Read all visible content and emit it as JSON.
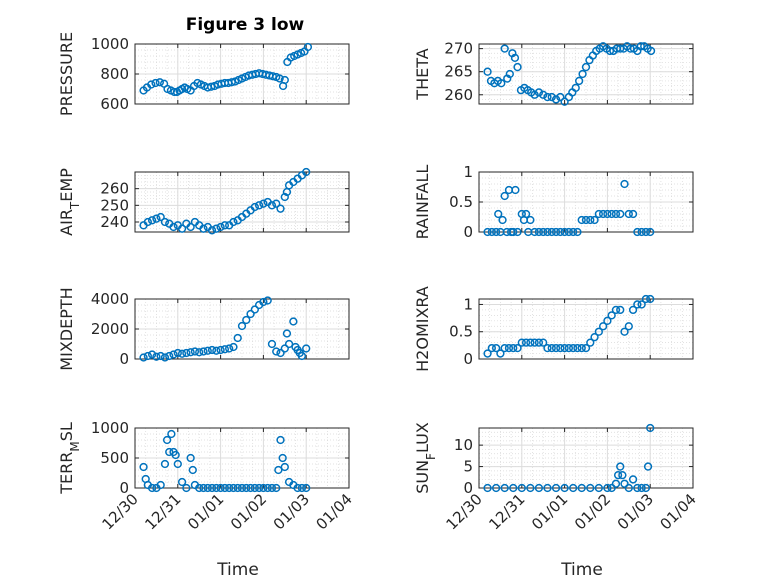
{
  "figure": {
    "title": "Figure 3 low",
    "x_axis_label": "Time",
    "x_tick_labels": [
      "12/30",
      "12/31",
      "01/01",
      "01/02",
      "01/03",
      "01/04"
    ],
    "marker_color": "#0072BD"
  },
  "chart_data": [
    {
      "type": "scatter",
      "name": "PRESSURE",
      "ylabel": "PRESSURE",
      "title": "Figure 3 low",
      "ylim": [
        600,
        1000
      ],
      "yticks": [
        600,
        800,
        1000
      ],
      "grid": true,
      "xlim": [
        0,
        5
      ],
      "x": [
        0.2,
        0.28,
        0.38,
        0.48,
        0.58,
        0.68,
        0.76,
        0.84,
        0.92,
        0.98,
        1.04,
        1.1,
        1.16,
        1.22,
        1.3,
        1.38,
        1.46,
        1.54,
        1.62,
        1.7,
        1.78,
        1.86,
        1.94,
        2.02,
        2.1,
        2.18,
        2.26,
        2.34,
        2.42,
        2.5,
        2.58,
        2.66,
        2.74,
        2.82,
        2.9,
        2.98,
        3.06,
        3.14,
        3.22,
        3.3,
        3.38,
        3.46,
        3.5,
        3.56,
        3.64,
        3.72,
        3.8,
        3.88,
        3.96,
        4.04
      ],
      "y": [
        690,
        710,
        730,
        740,
        745,
        735,
        700,
        690,
        680,
        680,
        690,
        700,
        710,
        700,
        690,
        720,
        740,
        730,
        720,
        710,
        715,
        720,
        730,
        735,
        740,
        740,
        745,
        750,
        760,
        770,
        780,
        790,
        795,
        800,
        805,
        800,
        795,
        790,
        785,
        780,
        770,
        720,
        760,
        880,
        910,
        920,
        930,
        940,
        950,
        980
      ]
    },
    {
      "type": "scatter",
      "name": "THETA",
      "ylabel": "THETA",
      "ylim": [
        258,
        271
      ],
      "yticks": [
        260,
        265,
        270
      ],
      "grid": true,
      "xlim": [
        0,
        5
      ],
      "x": [
        0.2,
        0.28,
        0.36,
        0.44,
        0.52,
        0.6,
        0.66,
        0.72,
        0.78,
        0.84,
        0.9,
        0.98,
        1.06,
        1.14,
        1.22,
        1.3,
        1.4,
        1.5,
        1.6,
        1.7,
        1.8,
        1.9,
        2.0,
        2.1,
        2.18,
        2.26,
        2.34,
        2.42,
        2.5,
        2.58,
        2.66,
        2.74,
        2.82,
        2.9,
        2.98,
        3.06,
        3.14,
        3.22,
        3.3,
        3.38,
        3.46,
        3.54,
        3.62,
        3.7,
        3.78,
        3.86,
        3.94,
        4.02
      ],
      "y": [
        265,
        263,
        262.5,
        263,
        262.5,
        270,
        263.5,
        264.5,
        269,
        268,
        266,
        261,
        261.5,
        261,
        260.5,
        260,
        260.5,
        260,
        259.5,
        259.5,
        259,
        259.5,
        258.5,
        259.5,
        260.5,
        261.5,
        263,
        264.5,
        266,
        267.5,
        268.5,
        269.5,
        270,
        270.5,
        270,
        269.5,
        269.5,
        270,
        270,
        270,
        270.5,
        270,
        270,
        269.5,
        270.5,
        270.5,
        270,
        269.5
      ]
    },
    {
      "type": "scatter",
      "name": "AIR_TEMP",
      "ylabel": "AIR_TEMP",
      "ylim": [
        234,
        270
      ],
      "yticks": [
        240,
        250,
        260
      ],
      "grid": true,
      "xlim": [
        0,
        5
      ],
      "x": [
        0.2,
        0.3,
        0.4,
        0.5,
        0.6,
        0.7,
        0.8,
        0.9,
        1.0,
        1.1,
        1.2,
        1.3,
        1.4,
        1.5,
        1.6,
        1.7,
        1.8,
        1.9,
        2.0,
        2.1,
        2.2,
        2.3,
        2.4,
        2.5,
        2.6,
        2.7,
        2.8,
        2.9,
        3.0,
        3.1,
        3.2,
        3.3,
        3.4,
        3.5,
        3.55,
        3.6,
        3.7,
        3.8,
        3.9,
        4.0
      ],
      "y": [
        238,
        240,
        241,
        242,
        243,
        240,
        239,
        237,
        238,
        236,
        239,
        237,
        240,
        238,
        236,
        237,
        235,
        236,
        237,
        238,
        238,
        240,
        241,
        243,
        245,
        247,
        249,
        250,
        251,
        252,
        250,
        251,
        248,
        255,
        258,
        262,
        264,
        266,
        268,
        270
      ]
    },
    {
      "type": "scatter",
      "name": "RAINFALL",
      "ylabel": "RAINFALL",
      "ylim": [
        0,
        1
      ],
      "yticks": [
        0,
        0.5,
        1
      ],
      "grid": true,
      "xlim": [
        0,
        5
      ],
      "x": [
        0.2,
        0.3,
        0.4,
        0.45,
        0.5,
        0.55,
        0.6,
        0.65,
        0.7,
        0.75,
        0.8,
        0.85,
        0.9,
        1.0,
        1.05,
        1.1,
        1.15,
        1.2,
        1.3,
        1.4,
        1.5,
        1.6,
        1.7,
        1.8,
        1.9,
        2.0,
        2.1,
        2.2,
        2.3,
        2.4,
        2.5,
        2.6,
        2.7,
        2.8,
        2.9,
        3.0,
        3.1,
        3.2,
        3.3,
        3.4,
        3.5,
        3.6,
        3.7,
        3.8,
        3.9,
        4.0
      ],
      "y": [
        0,
        0,
        0,
        0.3,
        0,
        0.2,
        0.6,
        0,
        0.7,
        0,
        0,
        0.7,
        0,
        0.3,
        0.2,
        0.3,
        0,
        0.2,
        0,
        0,
        0,
        0,
        0,
        0,
        0,
        0,
        0,
        0,
        0,
        0.2,
        0.2,
        0.2,
        0.2,
        0.3,
        0.3,
        0.3,
        0.3,
        0.3,
        0.3,
        0.8,
        0.3,
        0.3,
        0,
        0,
        0,
        0
      ]
    },
    {
      "type": "scatter",
      "name": "MIXDEPTH",
      "ylabel": "MIXDEPTH",
      "ylim": [
        0,
        4000
      ],
      "yticks": [
        0,
        2000,
        4000
      ],
      "grid": true,
      "xlim": [
        0,
        5
      ],
      "x": [
        0.2,
        0.3,
        0.4,
        0.5,
        0.6,
        0.7,
        0.8,
        0.9,
        1.0,
        1.1,
        1.2,
        1.3,
        1.4,
        1.5,
        1.6,
        1.7,
        1.8,
        1.9,
        2.0,
        2.1,
        2.2,
        2.3,
        2.4,
        2.5,
        2.6,
        2.7,
        2.8,
        2.9,
        3.0,
        3.1,
        3.2,
        3.3,
        3.4,
        3.5,
        3.55,
        3.6,
        3.7,
        3.75,
        3.8,
        3.85,
        3.9,
        4.0
      ],
      "y": [
        100,
        200,
        300,
        150,
        200,
        100,
        200,
        300,
        400,
        350,
        400,
        450,
        500,
        450,
        500,
        550,
        600,
        550,
        600,
        650,
        700,
        800,
        1400,
        2200,
        2600,
        3000,
        3300,
        3600,
        3800,
        3900,
        1000,
        500,
        400,
        700,
        1700,
        1000,
        2500,
        800,
        600,
        400,
        200,
        700
      ]
    },
    {
      "type": "scatter",
      "name": "H2OMIXRA",
      "ylabel": "H2OMIXRA",
      "ylim": [
        0,
        1.1
      ],
      "yticks": [
        0,
        0.5,
        1
      ],
      "grid": true,
      "xlim": [
        0,
        5
      ],
      "x": [
        0.2,
        0.3,
        0.4,
        0.5,
        0.6,
        0.7,
        0.8,
        0.9,
        1.0,
        1.1,
        1.2,
        1.3,
        1.4,
        1.5,
        1.6,
        1.7,
        1.8,
        1.9,
        2.0,
        2.1,
        2.2,
        2.3,
        2.4,
        2.5,
        2.6,
        2.7,
        2.8,
        2.9,
        3.0,
        3.1,
        3.2,
        3.3,
        3.4,
        3.5,
        3.6,
        3.7,
        3.8,
        3.9,
        4.0
      ],
      "y": [
        0.1,
        0.2,
        0.2,
        0.1,
        0.2,
        0.2,
        0.2,
        0.2,
        0.3,
        0.3,
        0.3,
        0.3,
        0.3,
        0.3,
        0.2,
        0.2,
        0.2,
        0.2,
        0.2,
        0.2,
        0.2,
        0.2,
        0.2,
        0.2,
        0.3,
        0.4,
        0.5,
        0.6,
        0.7,
        0.8,
        0.9,
        0.9,
        0.5,
        0.6,
        0.9,
        1.0,
        1.0,
        1.1,
        1.1
      ]
    },
    {
      "type": "scatter",
      "name": "TERR_MSL",
      "ylabel": "TERR_MSL",
      "ylim": [
        0,
        1000
      ],
      "yticks": [
        0,
        500,
        1000
      ],
      "grid": true,
      "xlim": [
        0,
        5
      ],
      "x": [
        0.2,
        0.25,
        0.3,
        0.4,
        0.5,
        0.6,
        0.7,
        0.75,
        0.8,
        0.85,
        0.9,
        0.95,
        1.0,
        1.1,
        1.2,
        1.3,
        1.35,
        1.4,
        1.5,
        1.6,
        1.7,
        1.8,
        1.9,
        2.0,
        2.1,
        2.2,
        2.3,
        2.4,
        2.5,
        2.6,
        2.7,
        2.8,
        2.9,
        3.0,
        3.1,
        3.2,
        3.3,
        3.35,
        3.4,
        3.45,
        3.5,
        3.6,
        3.7,
        3.8,
        3.9,
        4.0
      ],
      "y": [
        350,
        150,
        50,
        0,
        0,
        50,
        400,
        800,
        600,
        900,
        600,
        550,
        400,
        100,
        0,
        500,
        300,
        50,
        0,
        0,
        0,
        0,
        0,
        0,
        0,
        0,
        0,
        0,
        0,
        0,
        0,
        0,
        0,
        0,
        0,
        0,
        0,
        300,
        800,
        500,
        350,
        100,
        50,
        0,
        0,
        0
      ]
    },
    {
      "type": "scatter",
      "name": "SUN_FLUX",
      "ylabel": "SUN_FLUX",
      "ylim": [
        0,
        14
      ],
      "yticks": [
        0,
        5,
        10
      ],
      "grid": true,
      "xlim": [
        0,
        5
      ],
      "x": [
        0.2,
        0.4,
        0.6,
        0.8,
        1.0,
        1.2,
        1.4,
        1.6,
        1.8,
        2.0,
        2.2,
        2.4,
        2.6,
        2.8,
        3.0,
        3.1,
        3.2,
        3.25,
        3.3,
        3.35,
        3.4,
        3.5,
        3.6,
        3.7,
        3.8,
        3.9,
        3.95,
        4.0
      ],
      "y": [
        0,
        0,
        0,
        0,
        0,
        0,
        0,
        0,
        0,
        0,
        0,
        0,
        0,
        0,
        0,
        0,
        1,
        3,
        5,
        3,
        1,
        0,
        2,
        0,
        0,
        0,
        5,
        14
      ]
    }
  ]
}
